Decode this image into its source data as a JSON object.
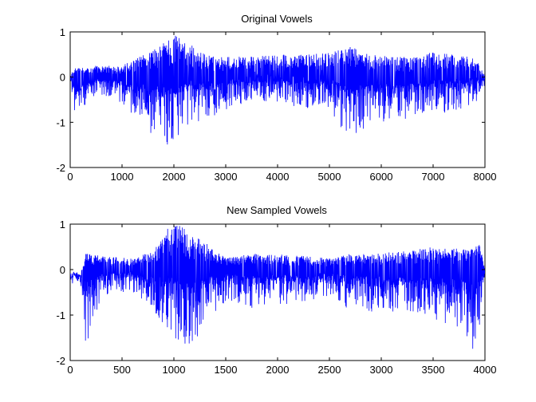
{
  "chart_data": [
    {
      "type": "line",
      "title": "Original Vowels",
      "xlabel": "",
      "ylabel": "",
      "xlim": [
        0,
        8000
      ],
      "ylim": [
        -2,
        1
      ],
      "xticks": [
        0,
        1000,
        2000,
        3000,
        4000,
        5000,
        6000,
        7000,
        8000
      ],
      "yticks": [
        -2,
        -1,
        0,
        1
      ],
      "grid": false,
      "series_color": "#0000ff",
      "envelope": {
        "x": [
          0,
          100,
          500,
          1000,
          1500,
          1800,
          2000,
          2300,
          2600,
          3000,
          3500,
          4000,
          4500,
          5000,
          5400,
          5800,
          6200,
          6600,
          7000,
          7400,
          7800,
          8000
        ],
        "ymax": [
          0.05,
          0.2,
          0.25,
          0.25,
          0.55,
          0.75,
          0.95,
          0.75,
          0.5,
          0.45,
          0.45,
          0.5,
          0.5,
          0.55,
          0.7,
          0.5,
          0.45,
          0.45,
          0.55,
          0.5,
          0.45,
          0.05
        ],
        "ymin": [
          -0.05,
          -0.9,
          -0.4,
          -0.6,
          -1.2,
          -1.5,
          -1.55,
          -1.1,
          -0.9,
          -0.8,
          -0.5,
          -0.6,
          -0.7,
          -0.8,
          -1.4,
          -1.0,
          -1.0,
          -0.9,
          -0.85,
          -0.8,
          -0.6,
          -0.2
        ]
      }
    },
    {
      "type": "line",
      "title": "New Sampled Vowels",
      "xlabel": "",
      "ylabel": "",
      "xlim": [
        0,
        4000
      ],
      "ylim": [
        -2,
        1
      ],
      "xticks": [
        0,
        500,
        1000,
        1500,
        2000,
        2500,
        3000,
        3500,
        4000
      ],
      "yticks": [
        -2,
        -1,
        0,
        1
      ],
      "grid": false,
      "series_color": "#0000ff",
      "envelope": {
        "x": [
          0,
          100,
          150,
          300,
          600,
          800,
          950,
          1050,
          1150,
          1300,
          1500,
          1750,
          2000,
          2250,
          2500,
          2700,
          2900,
          3200,
          3500,
          3800,
          3880,
          3950,
          4000
        ],
        "ymax": [
          -0.2,
          -0.15,
          0.35,
          0.3,
          0.25,
          0.4,
          0.95,
          1.0,
          0.8,
          0.6,
          0.25,
          0.35,
          0.35,
          0.3,
          0.25,
          0.35,
          0.35,
          0.4,
          0.5,
          0.45,
          0.5,
          0.55,
          0.0
        ],
        "ymin": [
          -0.25,
          -0.3,
          -1.7,
          -0.6,
          -0.5,
          -0.9,
          -1.35,
          -1.65,
          -1.85,
          -1.2,
          -0.7,
          -0.85,
          -0.8,
          -0.7,
          -0.6,
          -0.9,
          -1.0,
          -0.9,
          -1.1,
          -1.5,
          -1.85,
          -1.2,
          -0.2
        ]
      }
    }
  ]
}
